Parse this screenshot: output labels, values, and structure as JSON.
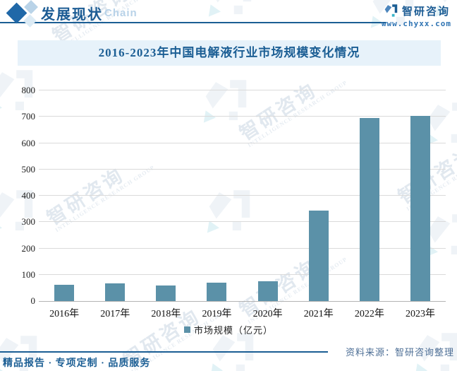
{
  "header": {
    "title": "发展现状",
    "title_suffix": "Chain",
    "brand": {
      "name": "智研咨询",
      "url": "www.chyxx.com"
    }
  },
  "chart_title": "2016-2023年中国电解液行业市场规模变化情况",
  "chart_data": {
    "type": "bar",
    "title": "2016-2023年中国电解液行业市场规模变化情况",
    "categories": [
      "2016年",
      "2017年",
      "2018年",
      "2019年",
      "2020年",
      "2021年",
      "2022年",
      "2023年"
    ],
    "values": [
      62,
      67,
      60,
      69,
      76,
      345,
      696,
      703
    ],
    "series_name": "市场规模（亿元）",
    "xlabel": "",
    "ylabel": "",
    "ylim": [
      0,
      800
    ],
    "ytick_step": 100,
    "grid": true,
    "legend_position": "bottom",
    "bar_color": "#5b91a8"
  },
  "footer": {
    "source": "资料来源：智研咨询整理",
    "tagline": "精品报告 · 专项定制 · 品质服务"
  },
  "watermark": {
    "cn": "智研咨询",
    "en": "INTELLIGENCE RESEARCH GROUP"
  },
  "colors": {
    "accent_dark_blue": "#1b5e94",
    "banner_bg": "#e7f2fa",
    "bar": "#5b91a8",
    "gridline": "#dadada",
    "source_text": "#4e6f96"
  }
}
